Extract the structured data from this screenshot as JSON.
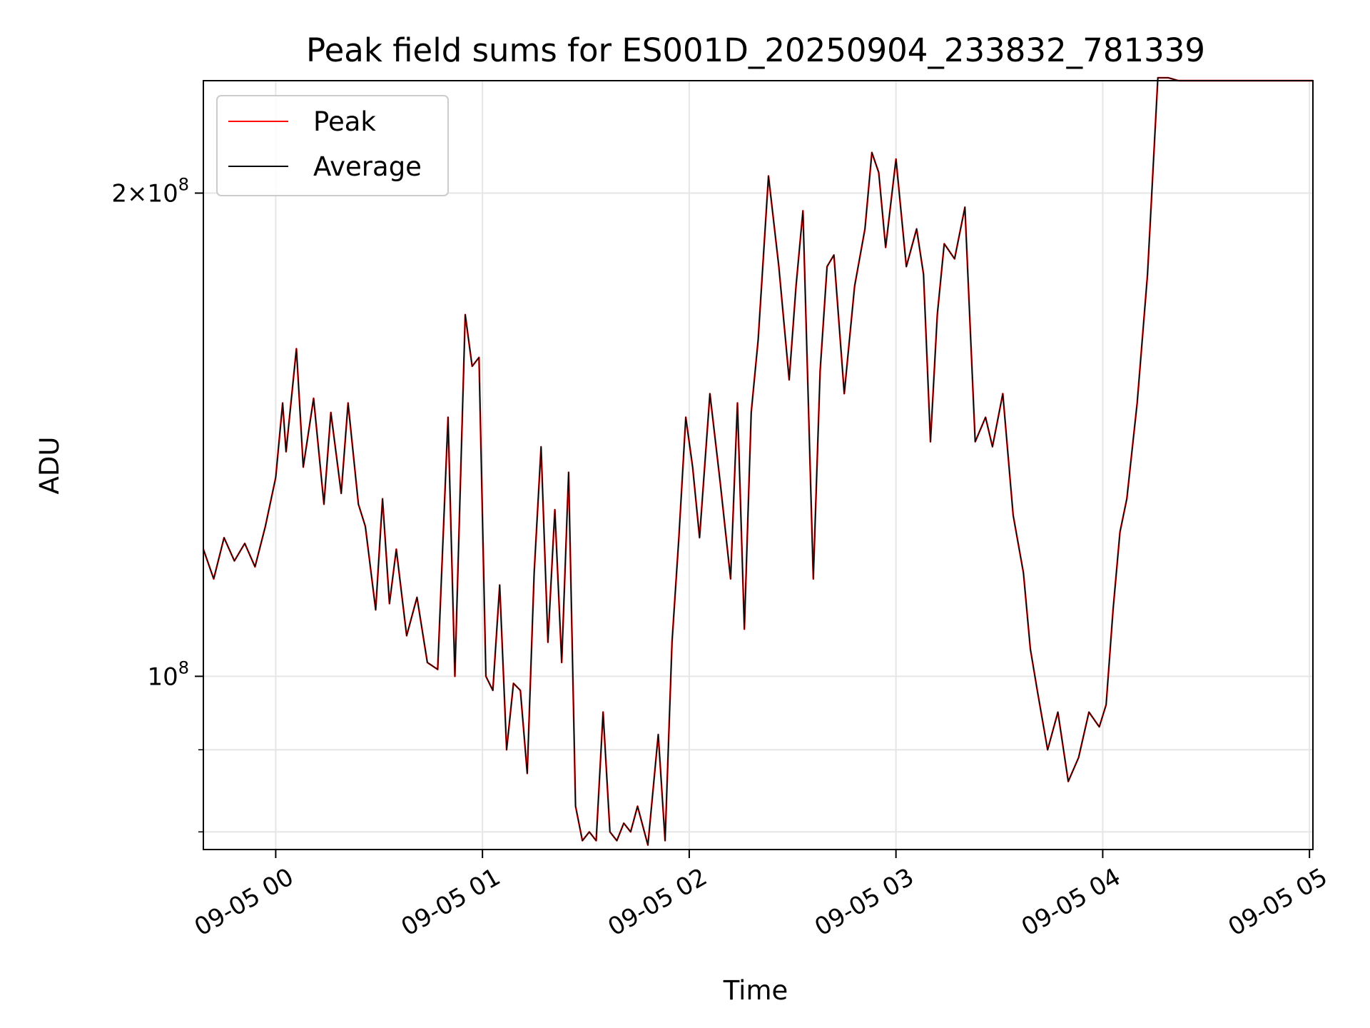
{
  "chart_data": {
    "type": "line",
    "title": "Peak field sums for ES001D_20250904_233832_781339",
    "xlabel": "Time",
    "ylabel": "ADU",
    "y_scale": "log",
    "ylim": [
      78000000,
      235000000
    ],
    "xlim": [
      "2025-09-04 23:39",
      "2025-09-05 05:01"
    ],
    "x_ticks": [
      "09-05 00",
      "09-05 01",
      "09-05 02",
      "09-05 03",
      "09-05 04",
      "09-05 05"
    ],
    "y_ticks": [
      {
        "value": 100000000,
        "base": "10",
        "exp": "8",
        "prefix": ""
      },
      {
        "value": 200000000,
        "base": "10",
        "exp": "8",
        "prefix": "2×"
      }
    ],
    "y_minor_ticks": [
      80000000,
      90000000
    ],
    "grid": true,
    "legend": "top-left",
    "colors": {
      "Peak": "#ff0000",
      "Average": "#000000"
    },
    "x": [
      "2025-09-04 23:39",
      "2025-09-04 23:42",
      "2025-09-04 23:45",
      "2025-09-04 23:48",
      "2025-09-04 23:51",
      "2025-09-04 23:54",
      "2025-09-04 23:57",
      "2025-09-05 00:00",
      "2025-09-05 00:02",
      "2025-09-05 00:03",
      "2025-09-05 00:06",
      "2025-09-05 00:08",
      "2025-09-05 00:11",
      "2025-09-05 00:14",
      "2025-09-05 00:16",
      "2025-09-05 00:19",
      "2025-09-05 00:21",
      "2025-09-05 00:24",
      "2025-09-05 00:26",
      "2025-09-05 00:29",
      "2025-09-05 00:31",
      "2025-09-05 00:33",
      "2025-09-05 00:35",
      "2025-09-05 00:38",
      "2025-09-05 00:41",
      "2025-09-05 00:44",
      "2025-09-05 00:47",
      "2025-09-05 00:50",
      "2025-09-05 00:52",
      "2025-09-05 00:55",
      "2025-09-05 00:57",
      "2025-09-05 00:59",
      "2025-09-05 01:01",
      "2025-09-05 01:03",
      "2025-09-05 01:05",
      "2025-09-05 01:07",
      "2025-09-05 01:09",
      "2025-09-05 01:11",
      "2025-09-05 01:13",
      "2025-09-05 01:15",
      "2025-09-05 01:17",
      "2025-09-05 01:19",
      "2025-09-05 01:21",
      "2025-09-05 01:23",
      "2025-09-05 01:25",
      "2025-09-05 01:27",
      "2025-09-05 01:29",
      "2025-09-05 01:31",
      "2025-09-05 01:33",
      "2025-09-05 01:35",
      "2025-09-05 01:37",
      "2025-09-05 01:39",
      "2025-09-05 01:41",
      "2025-09-05 01:43",
      "2025-09-05 01:45",
      "2025-09-05 01:48",
      "2025-09-05 01:51",
      "2025-09-05 01:53",
      "2025-09-05 01:55",
      "2025-09-05 01:57",
      "2025-09-05 01:59",
      "2025-09-05 02:01",
      "2025-09-05 02:03",
      "2025-09-05 02:06",
      "2025-09-05 02:09",
      "2025-09-05 02:12",
      "2025-09-05 02:14",
      "2025-09-05 02:16",
      "2025-09-05 02:18",
      "2025-09-05 02:20",
      "2025-09-05 02:23",
      "2025-09-05 02:26",
      "2025-09-05 02:29",
      "2025-09-05 02:31",
      "2025-09-05 02:33",
      "2025-09-05 02:36",
      "2025-09-05 02:38",
      "2025-09-05 02:40",
      "2025-09-05 02:42",
      "2025-09-05 02:45",
      "2025-09-05 02:48",
      "2025-09-05 02:51",
      "2025-09-05 02:53",
      "2025-09-05 02:55",
      "2025-09-05 02:57",
      "2025-09-05 03:00",
      "2025-09-05 03:03",
      "2025-09-05 03:06",
      "2025-09-05 03:08",
      "2025-09-05 03:10",
      "2025-09-05 03:12",
      "2025-09-05 03:14",
      "2025-09-05 03:17",
      "2025-09-05 03:20",
      "2025-09-05 03:23",
      "2025-09-05 03:26",
      "2025-09-05 03:28",
      "2025-09-05 03:31",
      "2025-09-05 03:34",
      "2025-09-05 03:37",
      "2025-09-05 03:39",
      "2025-09-05 03:41",
      "2025-09-05 03:44",
      "2025-09-05 03:47",
      "2025-09-05 03:50",
      "2025-09-05 03:53",
      "2025-09-05 03:56",
      "2025-09-05 03:59",
      "2025-09-05 04:01",
      "2025-09-05 04:03",
      "2025-09-05 04:05",
      "2025-09-05 04:07",
      "2025-09-05 04:10",
      "2025-09-05 04:13",
      "2025-09-05 04:16",
      "2025-09-05 04:19",
      "2025-09-05 04:22",
      "2025-09-05 04:25",
      "2025-09-05 04:28",
      "2025-09-05 04:31",
      "2025-09-05 04:34",
      "2025-09-05 04:37",
      "2025-09-05 04:40",
      "2025-09-05 04:43",
      "2025-09-05 04:46",
      "2025-09-05 04:49",
      "2025-09-05 04:51",
      "2025-09-05 04:53",
      "2025-09-05 04:55",
      "2025-09-05 04:57",
      "2025-09-05 04:59",
      "2025-09-05 05:01"
    ],
    "series": [
      {
        "name": "Peak",
        "values": [
          120000000,
          115000000,
          122000000,
          118000000,
          121000000,
          117000000,
          124000000,
          133000000,
          148000000,
          138000000,
          160000000,
          135000000,
          149000000,
          128000000,
          146000000,
          130000000,
          148000000,
          128000000,
          124000000,
          110000000,
          129000000,
          111000000,
          120000000,
          106000000,
          112000000,
          102000000,
          101000000,
          145000000,
          100000000,
          168000000,
          156000000,
          158000000,
          100000000,
          98000000,
          114000000,
          90000000,
          99000000,
          98000000,
          87000000,
          116000000,
          139000000,
          105000000,
          127000000,
          102000000,
          134000000,
          83000000,
          79000000,
          80000000,
          79000000,
          95000000,
          80000000,
          79000000,
          81000000,
          80000000,
          83000000,
          78500000,
          92000000,
          79000000,
          105000000,
          122000000,
          145000000,
          135000000,
          122000000,
          150000000,
          132000000,
          115000000,
          148000000,
          107000000,
          146000000,
          162000000,
          205000000,
          180000000,
          153000000,
          175000000,
          195000000,
          115000000,
          155000000,
          180000000,
          183000000,
          150000000,
          175000000,
          190000000,
          212000000,
          206000000,
          185000000,
          210000000,
          180000000,
          190000000,
          178000000,
          140000000,
          168000000,
          186000000,
          182000000,
          196000000,
          140000000,
          145000000,
          139000000,
          150000000,
          126000000,
          116000000,
          104000000,
          98000000,
          90000000,
          95000000,
          86000000,
          89000000,
          95000000,
          93000000,
          96000000,
          110000000,
          123000000,
          129000000,
          148000000,
          178000000,
          236000000,
          236000000,
          235000000,
          235000000,
          235000000,
          235000000,
          235000000,
          235000000,
          235000000,
          235000000,
          235000000,
          235000000,
          235000000,
          235000000,
          235000000,
          235000000,
          235000000,
          235000000
        ]
      },
      {
        "name": "Average",
        "values": [
          120000000,
          115000000,
          122000000,
          118000000,
          121000000,
          117000000,
          124000000,
          133000000,
          148000000,
          138000000,
          160000000,
          135000000,
          149000000,
          128000000,
          146000000,
          130000000,
          148000000,
          128000000,
          124000000,
          110000000,
          129000000,
          111000000,
          120000000,
          106000000,
          112000000,
          102000000,
          101000000,
          145000000,
          100000000,
          168000000,
          156000000,
          158000000,
          100000000,
          98000000,
          114000000,
          90000000,
          99000000,
          98000000,
          87000000,
          116000000,
          139000000,
          105000000,
          127000000,
          102000000,
          134000000,
          83000000,
          79000000,
          80000000,
          79000000,
          95000000,
          80000000,
          79000000,
          81000000,
          80000000,
          83000000,
          78500000,
          92000000,
          79000000,
          105000000,
          122000000,
          145000000,
          135000000,
          122000000,
          150000000,
          132000000,
          115000000,
          148000000,
          107000000,
          146000000,
          162000000,
          205000000,
          180000000,
          153000000,
          175000000,
          195000000,
          115000000,
          155000000,
          180000000,
          183000000,
          150000000,
          175000000,
          190000000,
          212000000,
          206000000,
          185000000,
          210000000,
          180000000,
          190000000,
          178000000,
          140000000,
          168000000,
          186000000,
          182000000,
          196000000,
          140000000,
          145000000,
          139000000,
          150000000,
          126000000,
          116000000,
          104000000,
          98000000,
          90000000,
          95000000,
          86000000,
          89000000,
          95000000,
          93000000,
          96000000,
          110000000,
          123000000,
          129000000,
          148000000,
          178000000,
          236000000,
          236000000,
          235000000,
          235000000,
          235000000,
          235000000,
          235000000,
          235000000,
          235000000,
          235000000,
          235000000,
          235000000,
          235000000,
          235000000,
          235000000,
          235000000,
          235000000,
          235000000
        ]
      }
    ]
  }
}
